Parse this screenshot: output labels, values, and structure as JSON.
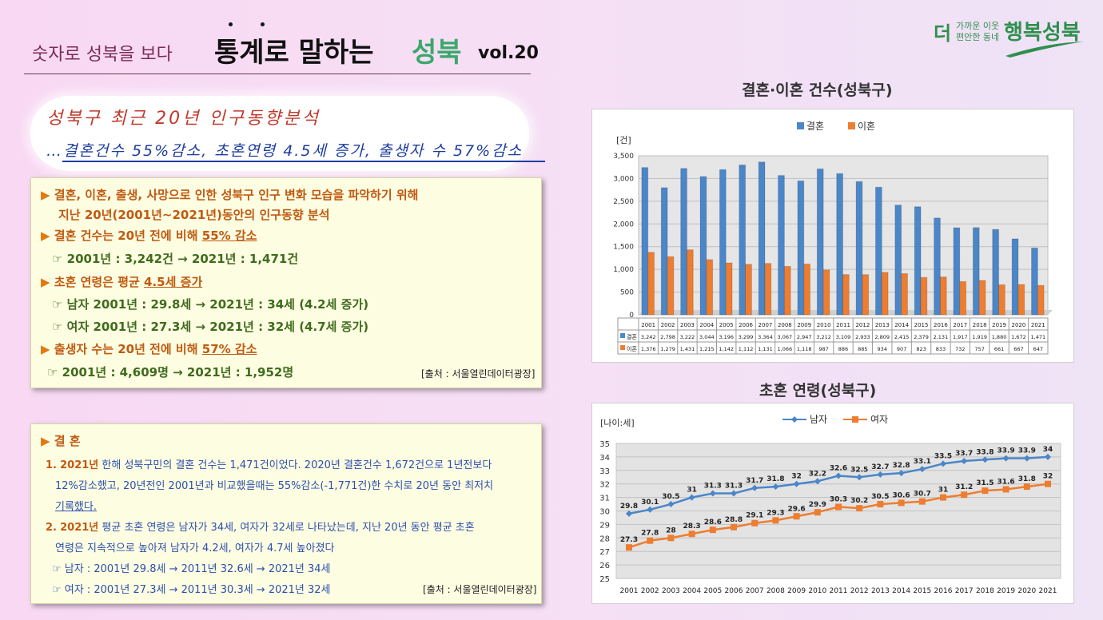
{
  "header": {
    "subtitle": "숫자로 성북을 보다",
    "title_main": "통계로 말하는",
    "title_accent": "성북",
    "volume": "vol.20"
  },
  "logo": {
    "prefix": "더",
    "small_line1": "가까운 이웃",
    "small_line2": "편안한 동네",
    "main": "행복성북"
  },
  "banner": {
    "line1": "성북구 최근 20년 인구동향분석",
    "line2": "…결혼건수 55%감소, 초혼연령 4.5세 증가, 출생자 수 57%감소"
  },
  "summary": {
    "intro_line1": "결혼, 이혼, 출생, 사망으로 인한 성북구 인구 변화 모습을 파악하기 위해",
    "intro_line2": "지난 20년(2001년~2021년)동안의 인구동향 분석",
    "marriage_head": "결혼 건수는 20년 전에 비해",
    "marriage_change": "55% 감소",
    "marriage_detail": "☞ 2001년 : 3,242건 → 2021년 : 1,471건",
    "age_head": "초혼 연령은 평균",
    "age_change": "4.5세 증가",
    "age_male": "☞ 남자 2001년 : 29.8세 → 2021년 : 34세 (4.2세 증가)",
    "age_female": "☞ 여자 2001년 : 27.3세 → 2021년 : 32세 (4.7세 증가)",
    "birth_head": "출생자 수는 20년 전에 비해",
    "birth_change": "57% 감소",
    "birth_detail": "☞ 2001년 : 4,609명 → 2021년 : 1,952명",
    "source": "[출처 : 서울열린데이터광장]"
  },
  "detail": {
    "heading": "결 혼",
    "p1_num": "1.",
    "p1_year": "2021년",
    "p1_line1": "한해 성북구민의 결혼 건수는 1,471건이었다. 2020년 결혼건수 1,672건으로 1년전보다",
    "p1_line2": "12%감소했고, 20년전인 2001년과 비교했을때는 55%감소(-1,771건)한 수치로 20년 동안 최저치",
    "p1_line3": "기록했다.",
    "p2_num": "2.",
    "p2_year": "2021년",
    "p2_line1": "평균 초혼 연령은 남자가 34세, 여자가 32세로 나타났는데, 지난 20년 동안 평균 초혼",
    "p2_line2": "연령은 지속적으로 높아져 남자가 4.2세, 여자가 4.7세 높아졌다",
    "male_line": "☞ 남자 : 2001년 29.8세 → 2011년 32.6세 → 2021년 34세",
    "female_line": "☞ 여자 : 2001년 27.3세 → 2011년 30.3세 → 2021년 32세",
    "source": "[출처 : 서울열린데이터광장]"
  },
  "chart_data": [
    {
      "type": "bar",
      "title": "결혼·이혼 건수(성북구)",
      "ylabel": "[건]",
      "xlabel": "",
      "ylim": [
        0,
        3500
      ],
      "yticks": [
        "0",
        "500",
        "1,000",
        "1,500",
        "2,000",
        "2,500",
        "3,000",
        "3,500"
      ],
      "grid": true,
      "legend": "top-center",
      "categories": [
        "2001",
        "2002",
        "2003",
        "2004",
        "2005",
        "2006",
        "2007",
        "2008",
        "2009",
        "2010",
        "2011",
        "2012",
        "2013",
        "2014",
        "2015",
        "2016",
        "2017",
        "2018",
        "2019",
        "2020",
        "2021"
      ],
      "series": [
        {
          "name": "결혼",
          "color": "#4a86c8",
          "values": [
            3242,
            2798,
            3222,
            3044,
            3196,
            3299,
            3364,
            3067,
            2947,
            3212,
            3109,
            2933,
            2809,
            2415,
            2379,
            2131,
            1917,
            1919,
            1880,
            1672,
            1471
          ],
          "labels": [
            "3,242",
            "2,798",
            "3,222",
            "3,044",
            "3,196",
            "3,299",
            "3,364",
            "3,067",
            "2,947",
            "3,212",
            "3,109",
            "2,933",
            "2,809",
            "2,415",
            "2,379",
            "2,131",
            "1,917",
            "1,919",
            "1,880",
            "1,672",
            "1,471"
          ]
        },
        {
          "name": "이혼",
          "color": "#ed7d31",
          "values": [
            1376,
            1279,
            1431,
            1215,
            1142,
            1112,
            1131,
            1066,
            1118,
            987,
            886,
            885,
            934,
            907,
            823,
            833,
            732,
            757,
            661,
            667,
            647
          ],
          "labels": [
            "1,376",
            "1,279",
            "1,431",
            "1,215",
            "1,142",
            "1,112",
            "1,131",
            "1,066",
            "1,118",
            "987",
            "886",
            "885",
            "934",
            "907",
            "823",
            "833",
            "732",
            "757",
            "661",
            "667",
            "647"
          ]
        }
      ]
    },
    {
      "type": "line",
      "title": "초혼 연령(성북구)",
      "ylabel": "[나이:세]",
      "xlabel": "",
      "ylim": [
        25,
        35
      ],
      "yticks": [
        "25",
        "26",
        "27",
        "28",
        "29",
        "30",
        "31",
        "32",
        "33",
        "34",
        "35"
      ],
      "grid": true,
      "legend": "top-center",
      "categories": [
        "2001",
        "2002",
        "2003",
        "2004",
        "2005",
        "2006",
        "2007",
        "2008",
        "2009",
        "2010",
        "2011",
        "2012",
        "2013",
        "2014",
        "2015",
        "2016",
        "2017",
        "2018",
        "2019",
        "2020",
        "2021"
      ],
      "series": [
        {
          "name": "남자",
          "color": "#4a86c8",
          "values": [
            29.8,
            30.1,
            30.5,
            31,
            31.3,
            31.3,
            31.7,
            31.8,
            32,
            32.2,
            32.6,
            32.5,
            32.7,
            32.8,
            33.1,
            33.5,
            33.7,
            33.8,
            33.9,
            33.9,
            34
          ]
        },
        {
          "name": "여자",
          "color": "#ed7d31",
          "values": [
            27.3,
            27.8,
            28,
            28.3,
            28.6,
            28.8,
            29.1,
            29.3,
            29.6,
            29.9,
            30.3,
            30.2,
            30.5,
            30.6,
            30.7,
            31,
            31.2,
            31.5,
            31.6,
            31.8,
            32
          ]
        }
      ]
    }
  ]
}
